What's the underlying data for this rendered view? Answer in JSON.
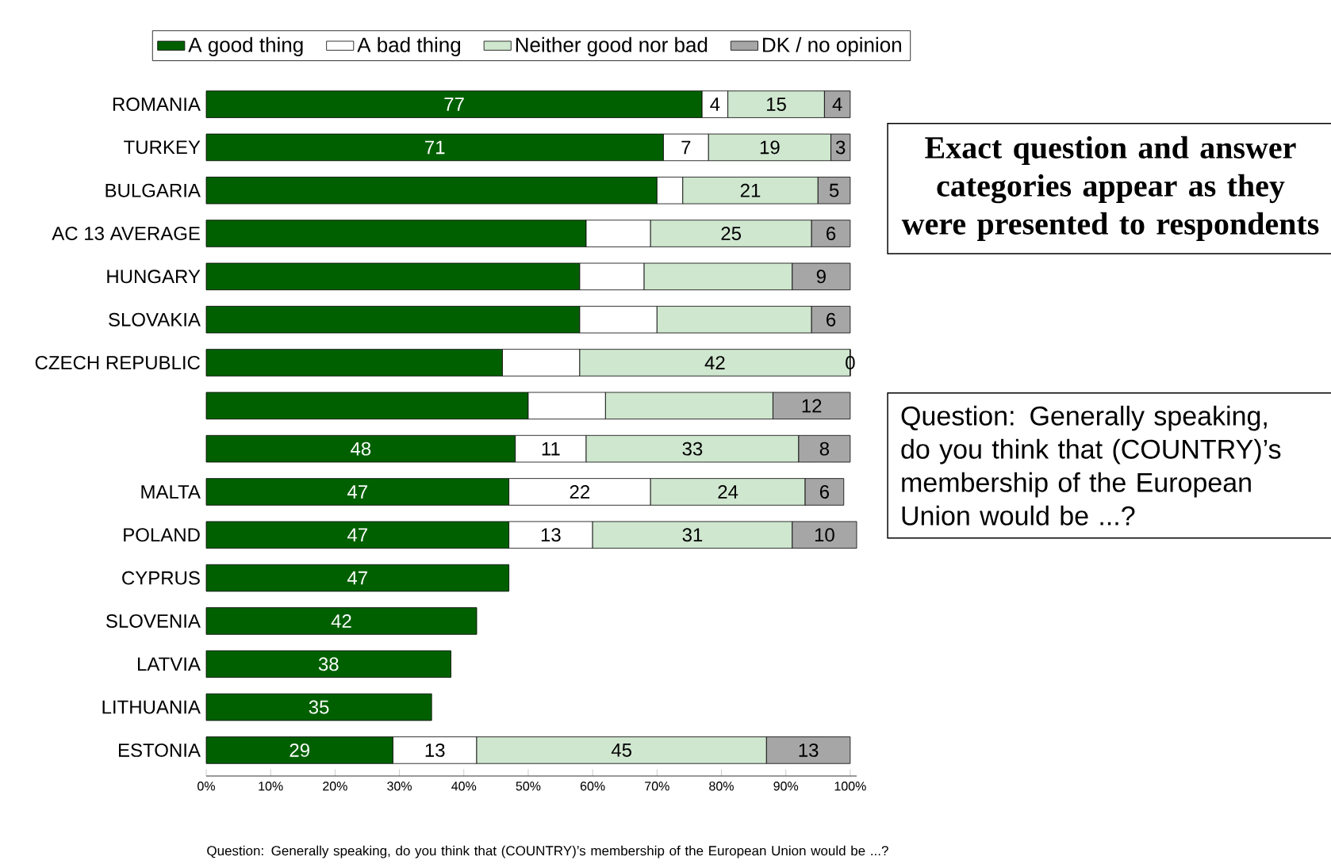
{
  "chart_data": {
    "type": "bar",
    "orientation": "horizontal",
    "stacked": true,
    "categories": [
      "ROMANIA",
      "TURKEY",
      "BULGARIA",
      "AC 13 AVERAGE",
      "HUNGARY",
      "SLOVAKIA",
      "CZECH REPUBLIC",
      null,
      null,
      "MALTA",
      "POLAND",
      "CYPRUS",
      "SLOVENIA",
      "LATVIA",
      "LITHUANIA",
      "ESTONIA"
    ],
    "series": [
      {
        "name": "A good thing",
        "color": "#006000",
        "values": [
          77,
          71,
          70,
          59,
          58,
          58,
          46,
          50,
          48,
          47,
          47,
          47,
          42,
          38,
          35,
          29
        ],
        "value_labels": [
          "77",
          "71",
          null,
          null,
          null,
          null,
          null,
          null,
          "48",
          "47",
          "47",
          "47",
          "42",
          "38",
          "35",
          "29"
        ]
      },
      {
        "name": "A bad thing",
        "color": "#ffffff",
        "values": [
          4,
          7,
          4,
          10,
          10,
          12,
          12,
          12,
          11,
          22,
          13,
          null,
          null,
          null,
          null,
          13
        ],
        "value_labels": [
          "4",
          "7",
          null,
          null,
          null,
          null,
          null,
          null,
          "11",
          "22",
          "13",
          null,
          null,
          null,
          null,
          "13"
        ]
      },
      {
        "name": "Neither good nor bad",
        "color": "#cfe6cf",
        "values": [
          15,
          19,
          21,
          25,
          23,
          24,
          42,
          26,
          33,
          24,
          31,
          null,
          null,
          null,
          null,
          45
        ],
        "value_labels": [
          "15",
          "19",
          "21",
          "25",
          null,
          null,
          "42",
          null,
          "33",
          "24",
          "31",
          null,
          null,
          null,
          null,
          "45"
        ]
      },
      {
        "name": "DK / no opinion",
        "color": "#a6a6a6",
        "values": [
          4,
          3,
          5,
          6,
          9,
          6,
          0,
          12,
          8,
          6,
          10,
          null,
          null,
          null,
          null,
          13
        ],
        "value_labels": [
          "4",
          "3",
          "5",
          "6",
          "9",
          "6",
          "0",
          "12",
          "8",
          "6",
          "10",
          null,
          null,
          null,
          null,
          "13"
        ]
      }
    ],
    "xlim": [
      0,
      101
    ],
    "xticks": [
      {
        "value": 0,
        "label": "0%"
      },
      {
        "value": 10,
        "label": "10%"
      },
      {
        "value": 20,
        "label": "20%"
      },
      {
        "value": 30,
        "label": "30%"
      },
      {
        "value": 40,
        "label": "40%"
      },
      {
        "value": 50,
        "label": "50%"
      },
      {
        "value": 60,
        "label": "60%"
      },
      {
        "value": 70,
        "label": "70%"
      },
      {
        "value": 80,
        "label": "80%"
      },
      {
        "value": 90,
        "label": "90%"
      },
      {
        "value": 100,
        "label": "100%"
      }
    ],
    "legend": "top",
    "grid": false,
    "annotations": [
      "**Exact question and answer categories appear as they were presented to respondents**",
      "Question: Generally speaking, do you think that (COUNTRY)’s membership of the European Union would be ...?",
      "Question: Generally speaking, do you think that (COUNTRY)’s membership of the European Union would be ...?"
    ]
  }
}
